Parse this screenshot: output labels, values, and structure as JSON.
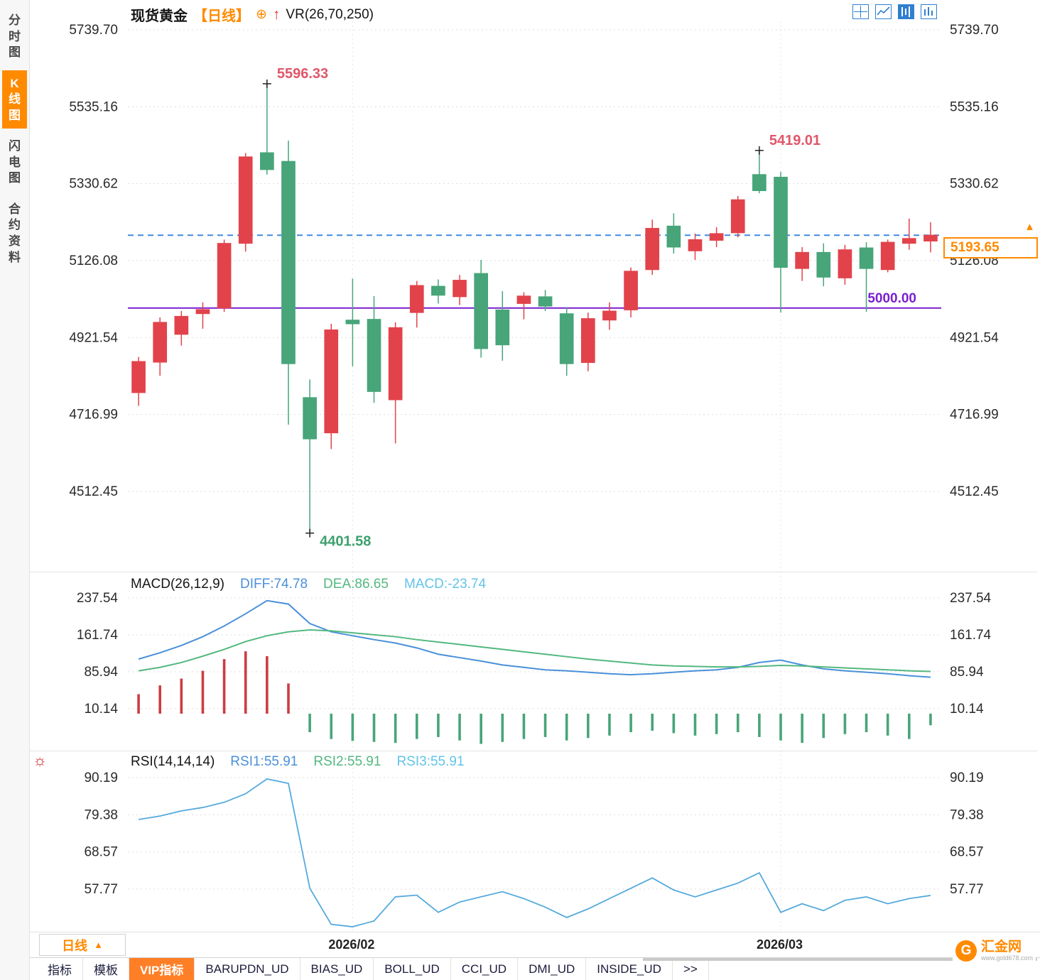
{
  "sidebar": {
    "items": [
      {
        "label": "分时图",
        "active": false
      },
      {
        "label": "K线图",
        "active": true
      },
      {
        "label": "闪电图",
        "active": false
      },
      {
        "label": "合约资料",
        "active": false
      }
    ]
  },
  "header": {
    "symbol": "现货黄金",
    "period_tag": "【日线】",
    "indicator": "VR(26,70,250)"
  },
  "icons": {
    "add_compare": "⊕",
    "trend_arrow": "↑",
    "indicator_settings": "☼",
    "price_marker": "▲",
    "period_arrow": "▲"
  },
  "toolbar_icons": [
    {
      "name": "quad-view-icon",
      "active": false
    },
    {
      "name": "line-chart-icon",
      "active": false
    },
    {
      "name": "kline-view-icon",
      "active": true
    },
    {
      "name": "compare-view-icon",
      "active": false
    }
  ],
  "price_box": {
    "value": "5193.65"
  },
  "bottom": {
    "period_button": "日线",
    "tabs": [
      {
        "label": "指标",
        "active": false
      },
      {
        "label": "模板",
        "active": false
      },
      {
        "label": "VIP指标",
        "active": true
      },
      {
        "label": "BARUPDN_UD",
        "active": false
      },
      {
        "label": "BIAS_UD",
        "active": false
      },
      {
        "label": "BOLL_UD",
        "active": false
      },
      {
        "label": "CCI_UD",
        "active": false
      },
      {
        "label": "DMI_UD",
        "active": false
      },
      {
        "label": "INSIDE_UD",
        "active": false
      },
      {
        "label": ">>",
        "active": false
      }
    ]
  },
  "logo": {
    "initial": "G",
    "brand": "汇金网",
    "sub": "www.gold678.com"
  },
  "colors": {
    "up": "#e2434b",
    "down": "#47a579",
    "accent_orange": "#ff8a00",
    "line_blue": "#4a90d9",
    "line_green": "#53b87f",
    "text_lightblue": "#62c3e8",
    "purple": "#7a1fd0",
    "dashed_blue": "#3f8ae0",
    "hist_red": "#cc3c44",
    "hist_green": "#47a579"
  },
  "chart_data": [
    {
      "type": "candlestick",
      "title": "现货黄金 日线 VR(26,70,250)",
      "y_ticks": [
        5739.7,
        5535.16,
        5330.62,
        5126.08,
        4921.54,
        4716.99,
        4512.45
      ],
      "x_ticks": [
        {
          "index": 10,
          "label": "2026/02"
        },
        {
          "index": 30,
          "label": "2026/03"
        }
      ],
      "candles": [
        [
          4775,
          4870,
          4740,
          4858
        ],
        [
          4856,
          4975,
          4820,
          4962
        ],
        [
          4930,
          4992,
          4900,
          4978
        ],
        [
          4985,
          5015,
          4945,
          4996
        ],
        [
          5000,
          5182,
          4990,
          5172
        ],
        [
          5172,
          5412,
          5150,
          5402
        ],
        [
          5413,
          5596.33,
          5355,
          5368
        ],
        [
          5390,
          5445,
          4690,
          4852
        ],
        [
          4762,
          4810,
          4401.58,
          4652
        ],
        [
          4668,
          4958,
          4625,
          4942
        ],
        [
          4968,
          5078,
          4845,
          4958
        ],
        [
          4970,
          5032,
          4748,
          4778
        ],
        [
          4756,
          4962,
          4640,
          4948
        ],
        [
          4988,
          5072,
          4948,
          5060
        ],
        [
          5058,
          5076,
          5012,
          5034
        ],
        [
          5030,
          5088,
          5008,
          5074
        ],
        [
          5092,
          5128,
          4868,
          4892
        ],
        [
          4995,
          5045,
          4860,
          4902
        ],
        [
          5012,
          5042,
          4970,
          5032
        ],
        [
          5030,
          5048,
          4992,
          5005
        ],
        [
          4985,
          5002,
          4820,
          4852
        ],
        [
          4855,
          4988,
          4832,
          4972
        ],
        [
          4968,
          5015,
          4942,
          4992
        ],
        [
          4995,
          5108,
          4975,
          5098
        ],
        [
          5102,
          5235,
          5088,
          5212
        ],
        [
          5218,
          5252,
          5145,
          5162
        ],
        [
          5152,
          5198,
          5128,
          5182
        ],
        [
          5180,
          5215,
          5162,
          5198
        ],
        [
          5200,
          5298,
          5188,
          5288
        ],
        [
          5355,
          5419.01,
          5305,
          5312
        ],
        [
          5348,
          5362,
          4988,
          5108
        ],
        [
          5105,
          5162,
          5072,
          5148
        ],
        [
          5148,
          5172,
          5058,
          5082
        ],
        [
          5080,
          5168,
          5062,
          5155
        ],
        [
          5160,
          5175,
          4990,
          5105
        ],
        [
          5102,
          5182,
          5095,
          5175
        ],
        [
          5172,
          5238,
          5155,
          5185
        ],
        [
          5178,
          5228,
          5148,
          5193.65
        ]
      ],
      "annotations": {
        "high": {
          "index": 6,
          "value": "5596.33"
        },
        "low": {
          "index": 8,
          "value": "4401.58"
        },
        "swing_high": {
          "index": 29,
          "value": "5419.01"
        },
        "hline": {
          "price": 5000,
          "value": "5000.00"
        },
        "last_price": {
          "price": 5193.65,
          "value": "5193.65"
        }
      }
    },
    {
      "type": "macd",
      "label": "MACD(26,12,9)",
      "legend": [
        {
          "text": "DIFF:74.78",
          "color": "#4a90d9"
        },
        {
          "text": "DEA:86.65",
          "color": "#53b87f"
        },
        {
          "text": "MACD:-23.74",
          "color": "#62c3e8"
        }
      ],
      "y_ticks": [
        237.54,
        161.74,
        85.94,
        10.14
      ],
      "diff": [
        112,
        125,
        140,
        158,
        180,
        205,
        232,
        225,
        185,
        168,
        160,
        152,
        145,
        135,
        122,
        115,
        108,
        100,
        95,
        90,
        88,
        85,
        82,
        80,
        82,
        85,
        88,
        90,
        95,
        105,
        110,
        100,
        92,
        88,
        85,
        82,
        78,
        74.78
      ],
      "dea": [
        88,
        95,
        105,
        118,
        132,
        148,
        160,
        168,
        172,
        170,
        166,
        162,
        158,
        152,
        147,
        142,
        137,
        132,
        127,
        122,
        117,
        112,
        108,
        104,
        100,
        98,
        97,
        96,
        96,
        97,
        99,
        98,
        96,
        94,
        92,
        90,
        88,
        86.65
      ],
      "hist": [
        40,
        58,
        72,
        88,
        112,
        128,
        118,
        62,
        -38,
        -52,
        -56,
        -58,
        -60,
        -52,
        -48,
        -55,
        -62,
        -58,
        -52,
        -48,
        -55,
        -50,
        -45,
        -38,
        -35,
        -40,
        -45,
        -42,
        -38,
        -48,
        -55,
        -60,
        -50,
        -42,
        -38,
        -45,
        -52,
        -23.74
      ]
    },
    {
      "type": "rsi",
      "label": "RSI(14,14,14)",
      "legend": [
        {
          "text": "RSI1:55.91",
          "color": "#4a90d9"
        },
        {
          "text": "RSI2:55.91",
          "color": "#53b87f"
        },
        {
          "text": "RSI3:55.91",
          "color": "#62c3e8"
        }
      ],
      "y_ticks": [
        90.19,
        79.38,
        68.57,
        57.77
      ],
      "rsi": [
        78,
        79,
        80.5,
        81.5,
        83,
        85.5,
        89.8,
        88.5,
        58,
        47.5,
        46.8,
        48.5,
        55.5,
        56,
        51,
        54,
        55.5,
        57,
        55,
        52.5,
        49.5,
        52,
        55,
        58,
        61,
        57.5,
        55.5,
        57.5,
        59.5,
        62.5,
        51,
        53.5,
        51.5,
        54.5,
        55.5,
        53.5,
        55,
        55.91
      ]
    }
  ]
}
